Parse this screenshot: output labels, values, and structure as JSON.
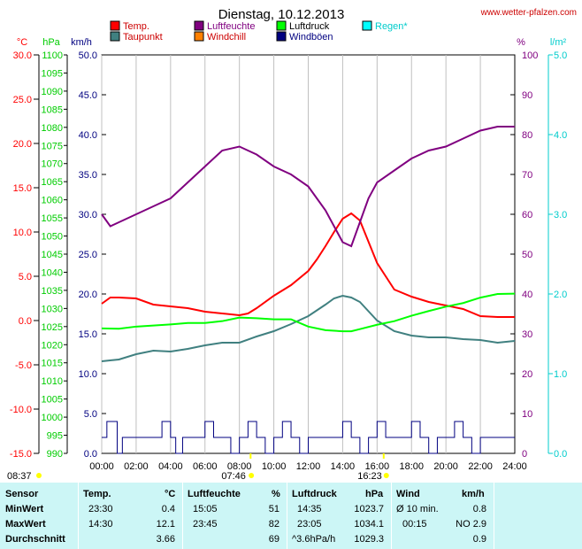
{
  "header": {
    "title": "Dienstag, 10.12.2013",
    "source": "www.wetter-pfalzen.com"
  },
  "chart_data": {
    "type": "line",
    "title": "Dienstag, 10.12.2013",
    "x_ticks": [
      "00:00",
      "02:00",
      "04:00",
      "06:00",
      "08:00",
      "10:00",
      "12:00",
      "14:00",
      "16:00",
      "18:00",
      "20:00",
      "22:00",
      "24:00"
    ],
    "axes": {
      "temp": {
        "unit": "°C",
        "min": -15,
        "max": 30,
        "ticks": [
          "30.0",
          "25.0",
          "20.0",
          "15.0",
          "10.0",
          "5.0",
          "0.0",
          "-5.0",
          "-10.0",
          "-15.0"
        ],
        "color": "#ff0000"
      },
      "pressure": {
        "unit": "hPa",
        "min": 990,
        "max": 1100,
        "ticks": [
          "1100",
          "1095",
          "1090",
          "1085",
          "1080",
          "1075",
          "1070",
          "1065",
          "1060",
          "1055",
          "1050",
          "1045",
          "1040",
          "1035",
          "1030",
          "1025",
          "1020",
          "1015",
          "1010",
          "1005",
          "1000",
          "995",
          "990"
        ],
        "color": "#00cc00"
      },
      "wind": {
        "unit": "km/h",
        "min": 0,
        "max": 50,
        "ticks": [
          "50.0",
          "45.0",
          "40.0",
          "35.0",
          "30.0",
          "25.0",
          "20.0",
          "15.0",
          "10.0",
          "5.0",
          "0.0"
        ],
        "color": "#000080"
      },
      "humidity": {
        "unit": "%",
        "min": 0,
        "max": 100,
        "ticks": [
          "100",
          "90",
          "80",
          "70",
          "60",
          "50",
          "40",
          "30",
          "20",
          "10",
          "0"
        ],
        "color": "#800080"
      },
      "rain": {
        "unit": "l/m²",
        "min": 0,
        "max": 5,
        "ticks": [
          "5.0",
          "4.0",
          "3.0",
          "2.0",
          "1.0",
          "0.0"
        ],
        "color": "#00cccc"
      }
    },
    "legend": [
      {
        "name": "Temp.",
        "color": "#ff0000"
      },
      {
        "name": "Taupunkt",
        "color": "#408080"
      },
      {
        "name": "Luftfeuchte",
        "color": "#800080"
      },
      {
        "name": "Windchill",
        "color": "#ff8000"
      },
      {
        "name": "Luftdruck",
        "color": "#00ff00"
      },
      {
        "name": "Windböen",
        "color": "#000080"
      },
      {
        "name": "Regen*",
        "color": "#00ffff"
      }
    ],
    "sunrise": "08:37",
    "sunset": "16:23",
    "noon": "07:46",
    "series": [
      {
        "name": "Temp.",
        "axis": "temp",
        "color": "#ff0000",
        "x": [
          0,
          0.5,
          1,
          2,
          3,
          3.5,
          4,
          5,
          6,
          7,
          8,
          8.5,
          9,
          10,
          11,
          12,
          12.5,
          13,
          13.5,
          14,
          14.5,
          15,
          16,
          17,
          18,
          19,
          20,
          21,
          22,
          23,
          23.5,
          24
        ],
        "y": [
          1.9,
          2.6,
          2.6,
          2.5,
          1.8,
          1.7,
          1.6,
          1.4,
          1.0,
          0.8,
          0.6,
          0.8,
          1.4,
          2.8,
          4.0,
          5.6,
          6.9,
          8.4,
          10.0,
          11.5,
          12.1,
          11.3,
          6.5,
          3.5,
          2.7,
          2.1,
          1.7,
          1.3,
          0.5,
          0.4,
          0.4,
          0.4
        ]
      },
      {
        "name": "Taupunkt",
        "axis": "temp",
        "color": "#408080",
        "x": [
          0,
          1,
          2,
          3,
          4,
          5,
          6,
          7,
          8,
          9,
          10,
          11,
          12,
          13,
          13.5,
          14,
          14.5,
          15,
          16,
          17,
          18,
          19,
          20,
          21,
          22,
          23,
          24
        ],
        "y": [
          -4.6,
          -4.4,
          -3.8,
          -3.4,
          -3.5,
          -3.2,
          -2.8,
          -2.5,
          -2.5,
          -1.8,
          -1.2,
          -0.4,
          0.5,
          1.8,
          2.5,
          2.8,
          2.6,
          2.1,
          0.0,
          -1.2,
          -1.7,
          -1.9,
          -1.9,
          -2.1,
          -2.2,
          -2.5,
          -2.3
        ]
      },
      {
        "name": "Luftfeuchte",
        "axis": "humidity",
        "color": "#800080",
        "x": [
          0,
          0.5,
          1,
          2,
          3,
          4,
          5,
          6,
          7,
          8,
          8.5,
          9,
          10,
          11,
          12,
          13,
          13.5,
          14,
          14.5,
          15,
          15.5,
          16,
          17,
          18,
          19,
          20,
          21,
          22,
          23,
          24
        ],
        "y": [
          60,
          57,
          58,
          60,
          62,
          64,
          68,
          72,
          76,
          77,
          76,
          75,
          72,
          70,
          67,
          61,
          57,
          53,
          52,
          58,
          64,
          68,
          71,
          74,
          76,
          77,
          79,
          81,
          82,
          82
        ]
      },
      {
        "name": "Luftdruck",
        "axis": "pressure",
        "color": "#00ff00",
        "x": [
          0,
          1,
          2,
          3,
          4,
          5,
          6,
          7,
          8,
          9,
          10,
          11,
          12,
          13,
          14,
          14.5,
          15,
          16,
          17,
          18,
          19,
          20,
          21,
          22,
          23,
          24
        ],
        "y": [
          1024.5,
          1024.4,
          1025,
          1025.3,
          1025.6,
          1026,
          1026,
          1026.5,
          1027.5,
          1027.3,
          1027,
          1027,
          1025,
          1024,
          1023.7,
          1023.7,
          1024.3,
          1025.5,
          1026.5,
          1028,
          1029.3,
          1030.5,
          1031.5,
          1033,
          1034,
          1034.1
        ]
      },
      {
        "name": "Windböen",
        "axis": "wind",
        "color": "#000080",
        "x": [
          0,
          0.3,
          0.6,
          0.9,
          1.2,
          1.5,
          2,
          2.5,
          3,
          3.5,
          4,
          4.3,
          4.7,
          5,
          5.5,
          6,
          6.5,
          7,
          7.5,
          8,
          8.5,
          9,
          9.5,
          10,
          10.5,
          11,
          11.5,
          12,
          12.5,
          13,
          13.5,
          14,
          14.5,
          15,
          15.5,
          16,
          16.5,
          17,
          17.5,
          18,
          18.5,
          19,
          19.5,
          20,
          20.5,
          21,
          21.5,
          22,
          22.5,
          23,
          23.5,
          24
        ],
        "y": [
          2,
          4,
          4,
          0,
          2,
          2,
          2,
          2,
          2,
          4,
          2,
          0,
          2,
          2,
          2,
          4,
          2,
          2,
          0,
          2,
          4,
          2,
          0,
          2,
          4,
          2,
          0,
          2,
          2,
          2,
          2,
          4,
          2,
          0,
          2,
          4,
          2,
          2,
          2,
          4,
          2,
          0,
          2,
          2,
          4,
          2,
          0,
          2,
          2,
          2,
          2,
          2
        ]
      }
    ]
  },
  "table": {
    "headers": {
      "sensor": "Sensor",
      "temp": "Temp.",
      "temp_unit": "°C",
      "hum": "Luftfeuchte",
      "hum_unit": "%",
      "press": "Luftdruck",
      "press_unit": "hPa",
      "wind": "Wind",
      "wind_unit": "km/h"
    },
    "rows": [
      {
        "label": "MinWert",
        "t_time": "23:30",
        "t_val": "0.4",
        "h_time": "15:05",
        "h_val": "51",
        "p_time": "14:35",
        "p_val": "1023.7",
        "w_time": "Ø 10 min.",
        "w_val": "0.8"
      },
      {
        "label": "MaxWert",
        "t_time": "14:30",
        "t_val": "12.1",
        "h_time": "23:45",
        "h_val": "82",
        "p_time": "23:05",
        "p_val": "1034.1",
        "w_time": "00:15",
        "w_val": "NO 2.9"
      },
      {
        "label": "Durchschnitt",
        "t_time": "",
        "t_val": "3.66",
        "h_time": "",
        "h_val": "69",
        "p_time": "^3.6hPa/h",
        "p_val": "1029.3",
        "w_time": "",
        "w_val": "0.9"
      }
    ]
  }
}
